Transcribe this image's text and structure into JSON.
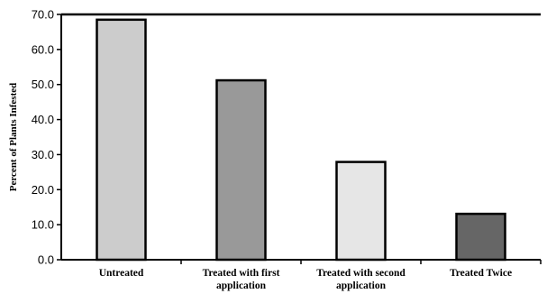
{
  "chart_data": {
    "type": "bar",
    "title": "",
    "xlabel": "",
    "ylabel": "Percent of Plants Infested",
    "ylim": [
      0,
      70
    ],
    "yticks": [
      "0.0",
      "10.0",
      "20.0",
      "30.0",
      "40.0",
      "50.0",
      "60.0",
      "70.0"
    ],
    "categories": [
      [
        "Untreated"
      ],
      [
        "Treated with first",
        "application"
      ],
      [
        "Treated with second",
        "application"
      ],
      [
        "Treated Twice"
      ]
    ],
    "values": [
      68.5,
      51.2,
      27.9,
      13.1
    ],
    "colors": [
      "#cccccc",
      "#999999",
      "#e6e6e6",
      "#666666"
    ],
    "grid": false,
    "legend": "none"
  }
}
